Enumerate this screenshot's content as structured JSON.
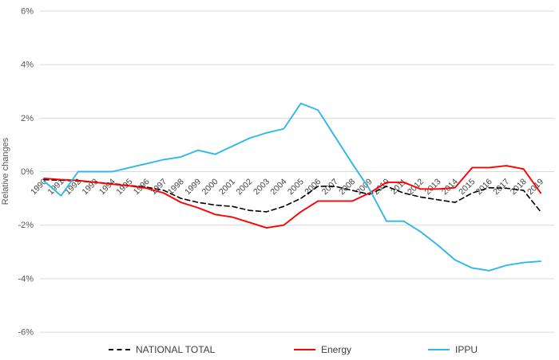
{
  "chart_data": {
    "type": "line",
    "title": "",
    "xlabel": "",
    "ylabel": "Relative changes",
    "ylim": [
      -6,
      6
    ],
    "grid": "horizontal-only",
    "legend_position": "bottom",
    "yticks": [
      {
        "value": 6,
        "label": "6%"
      },
      {
        "value": 4,
        "label": "4%"
      },
      {
        "value": 2,
        "label": "2%"
      },
      {
        "value": 0,
        "label": "0%"
      },
      {
        "value": -2,
        "label": "-2%"
      },
      {
        "value": -4,
        "label": "-4%"
      },
      {
        "value": -6,
        "label": "-6%"
      }
    ],
    "x": [
      1990,
      1991,
      1992,
      1993,
      1994,
      1995,
      1996,
      1997,
      1998,
      1999,
      2000,
      2001,
      2002,
      2003,
      2004,
      2005,
      2006,
      2007,
      2008,
      2009,
      2010,
      2011,
      2012,
      2013,
      2014,
      2015,
      2016,
      2017,
      2018,
      2019
    ],
    "series": [
      {
        "name": "NATIONAL TOTAL",
        "color": "#000000",
        "style": "dashed",
        "values": [
          -0.3,
          -0.32,
          -0.35,
          -0.4,
          -0.45,
          -0.52,
          -0.58,
          -0.7,
          -1.0,
          -1.15,
          -1.25,
          -1.3,
          -1.45,
          -1.5,
          -1.3,
          -1.0,
          -0.55,
          -0.55,
          -0.7,
          -0.85,
          -0.55,
          -0.8,
          -0.95,
          -1.05,
          -1.15,
          -0.8,
          -0.6,
          -0.62,
          -0.7,
          -1.5
        ]
      },
      {
        "name": "Energy",
        "color": "#ff0000",
        "style": "solid",
        "values": [
          -0.25,
          -0.3,
          -0.33,
          -0.4,
          -0.47,
          -0.53,
          -0.62,
          -0.8,
          -1.15,
          -1.35,
          -1.6,
          -1.7,
          -1.9,
          -2.1,
          -2.0,
          -1.5,
          -1.1,
          -1.1,
          -1.1,
          -0.8,
          -0.4,
          -0.4,
          -0.65,
          -0.65,
          -0.6,
          0.15,
          0.15,
          0.22,
          0.1,
          -0.8
        ]
      },
      {
        "name": "IPPU",
        "color": "#2fb7ea",
        "style": "solid",
        "values": [
          -0.35,
          -0.9,
          0.0,
          0.0,
          0.0,
          0.15,
          0.3,
          0.45,
          0.55,
          0.8,
          0.65,
          0.95,
          1.25,
          1.45,
          1.6,
          2.55,
          2.3,
          1.3,
          0.3,
          -0.65,
          -1.85,
          -1.85,
          -2.25,
          -2.75,
          -3.3,
          -3.6,
          -3.7,
          -3.5,
          -3.4,
          -3.35
        ]
      }
    ],
    "colors": {
      "gridline": "#d9d9d9",
      "axis_tick_text": "#595959",
      "category_text": "#404040"
    }
  }
}
